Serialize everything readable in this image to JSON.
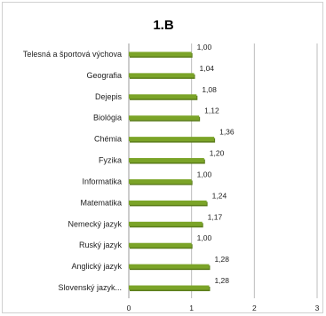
{
  "chart_data": {
    "type": "bar",
    "orientation": "horizontal",
    "title": "1.B",
    "xlabel": "",
    "ylabel": "",
    "xlim": [
      0,
      3
    ],
    "xticks": [
      "0",
      "1",
      "2",
      "3"
    ],
    "grid": true,
    "legend": "none",
    "bar_color": "#7ba428",
    "bar_shadow_color": "#5c7d1c",
    "categories": [
      "Telesná a športová výchova",
      "Geografia",
      "Dejepis",
      "Biológia",
      "Chémia",
      "Fyzika",
      "Informatika",
      "Matematika",
      "Nemecký jazyk",
      "Ruský jazyk",
      "Anglický jazyk",
      "Slovenský jazyk..."
    ],
    "values": [
      1.0,
      1.04,
      1.08,
      1.12,
      1.36,
      1.2,
      1.0,
      1.24,
      1.17,
      1.0,
      1.28,
      1.28
    ],
    "value_labels": [
      "1,00",
      "1,04",
      "1,08",
      "1,12",
      "1,36",
      "1,20",
      "1,00",
      "1,24",
      "1,17",
      "1,00",
      "1,28",
      "1,28"
    ]
  }
}
